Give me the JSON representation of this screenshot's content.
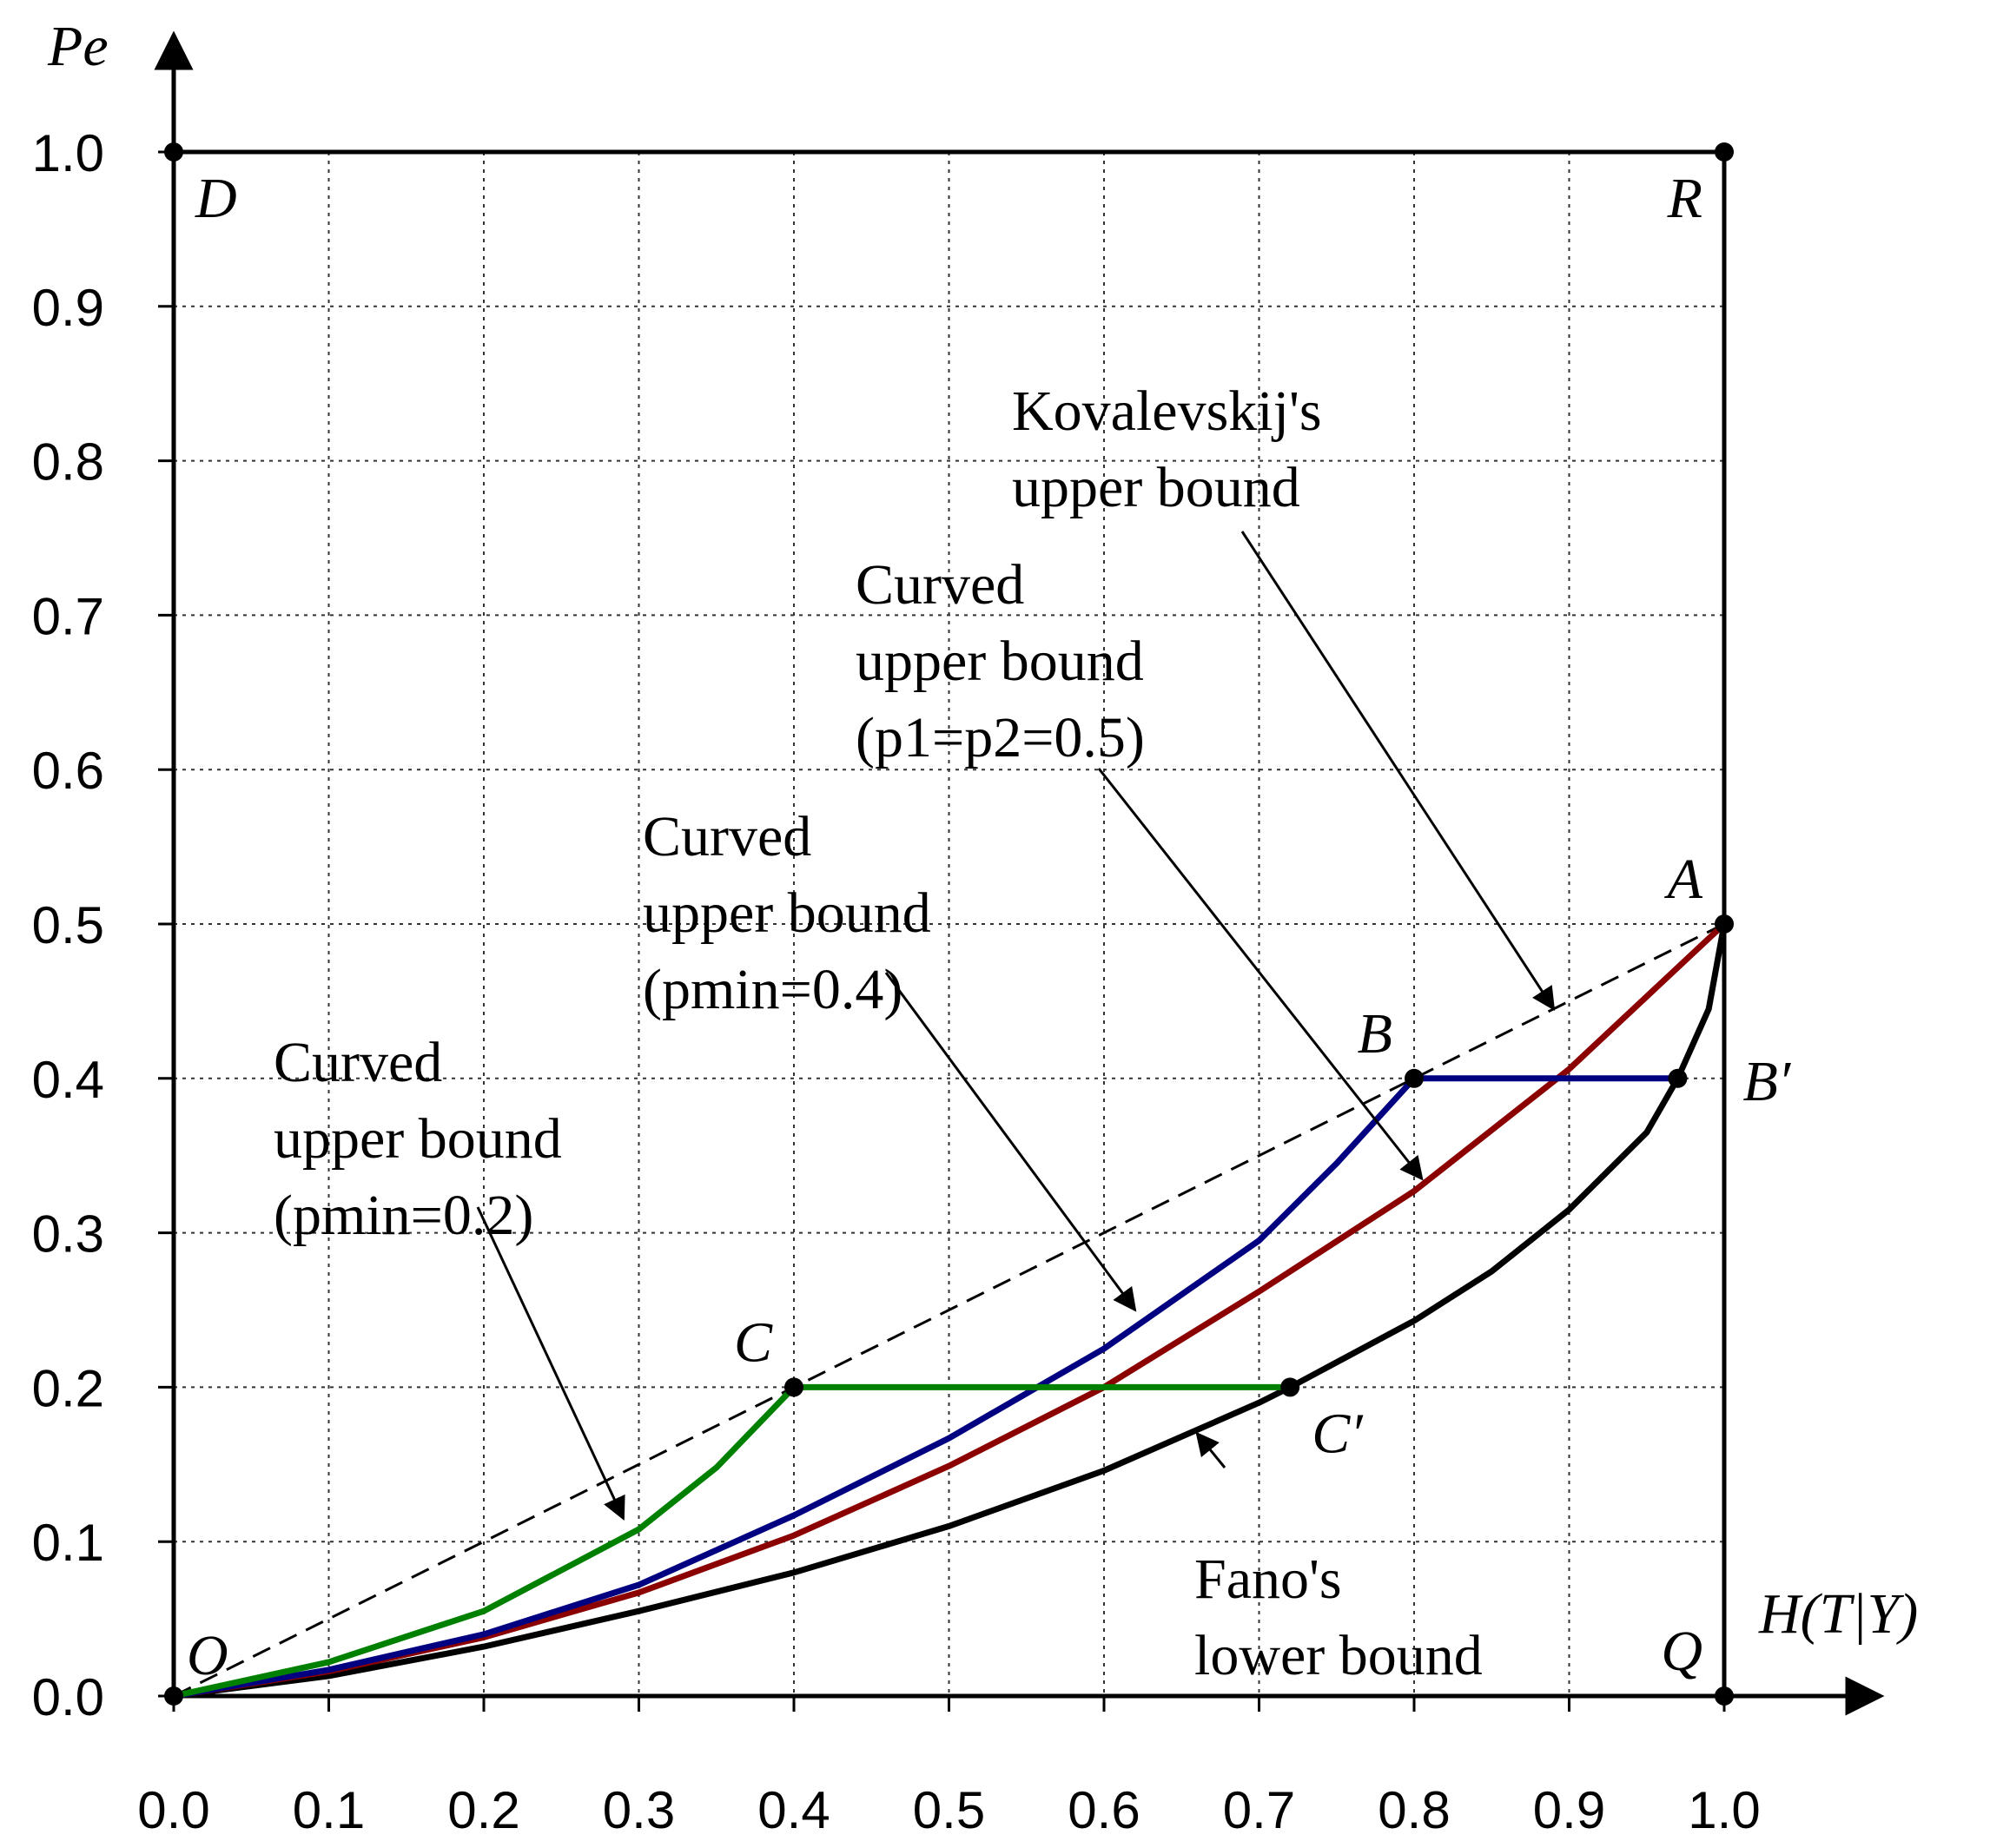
{
  "chart_data": {
    "type": "line",
    "title": "",
    "xlabel": "H(T|Y)",
    "ylabel": "Pe",
    "xlim": [
      0,
      1
    ],
    "ylim": [
      0,
      1
    ],
    "grid": true,
    "x_ticks": [
      "0.0",
      "0.1",
      "0.2",
      "0.3",
      "0.4",
      "0.5",
      "0.6",
      "0.7",
      "0.8",
      "0.9",
      "1.0"
    ],
    "y_ticks": [
      "0.0",
      "0.1",
      "0.2",
      "0.3",
      "0.4",
      "0.5",
      "0.6",
      "0.7",
      "0.8",
      "0.9",
      "1.0"
    ],
    "series": [
      {
        "name": "Kovalevskij's upper bound",
        "color": "#000000",
        "style": "dashed",
        "x": [
          0,
          1
        ],
        "y": [
          0,
          0.5
        ]
      },
      {
        "name": "Fano's lower bound",
        "color": "#000000",
        "style": "solid",
        "x": [
          0,
          0.1,
          0.2,
          0.3,
          0.4,
          0.5,
          0.6,
          0.7,
          0.72,
          0.8,
          0.85,
          0.9,
          0.95,
          0.97,
          0.99,
          1.0
        ],
        "y": [
          0,
          0.013,
          0.032,
          0.055,
          0.08,
          0.11,
          0.146,
          0.19,
          0.2,
          0.243,
          0.275,
          0.315,
          0.365,
          0.4,
          0.445,
          0.5
        ]
      },
      {
        "name": "Curved upper bound (p1=p2=0.5)",
        "color": "#8b0000",
        "style": "solid",
        "x": [
          0,
          0.1,
          0.2,
          0.3,
          0.4,
          0.5,
          0.6,
          0.7,
          0.8,
          0.9,
          1.0
        ],
        "y": [
          0,
          0.016,
          0.038,
          0.067,
          0.104,
          0.149,
          0.2,
          0.262,
          0.327,
          0.406,
          0.5
        ]
      },
      {
        "name": "Curved upper bound (pmin=0.4)",
        "color": "#000080",
        "style": "solid",
        "x": [
          0,
          0.1,
          0.2,
          0.3,
          0.4,
          0.5,
          0.6,
          0.7,
          0.75,
          0.8,
          0.97
        ],
        "y": [
          0,
          0.017,
          0.04,
          0.072,
          0.117,
          0.167,
          0.225,
          0.295,
          0.345,
          0.4,
          0.4
        ]
      },
      {
        "name": "Curved upper bound (pmin=0.2)",
        "color": "#008000",
        "style": "solid",
        "x": [
          0,
          0.1,
          0.2,
          0.3,
          0.35,
          0.4,
          0.72
        ],
        "y": [
          0,
          0.022,
          0.055,
          0.108,
          0.148,
          0.2,
          0.2
        ]
      },
      {
        "name": "frame",
        "color": "#000000",
        "style": "solid",
        "x": [
          0,
          0,
          1,
          1
        ],
        "y": [
          0,
          1,
          1,
          0
        ]
      }
    ],
    "points": [
      {
        "label": "O",
        "x": 0,
        "y": 0,
        "anchor": "upper-right"
      },
      {
        "label": "Q",
        "x": 1,
        "y": 0,
        "anchor": "upper-left"
      },
      {
        "label": "D",
        "x": 0,
        "y": 1,
        "anchor": "lower-right"
      },
      {
        "label": "R",
        "x": 1,
        "y": 1,
        "anchor": "lower-left"
      },
      {
        "label": "A",
        "x": 1,
        "y": 0.5,
        "anchor": "upper-left"
      },
      {
        "label": "B",
        "x": 0.8,
        "y": 0.4,
        "anchor": "upper-left"
      },
      {
        "label": "B′",
        "x": 0.97,
        "y": 0.4,
        "anchor": "right"
      },
      {
        "label": "C",
        "x": 0.4,
        "y": 0.2,
        "anchor": "upper-left"
      },
      {
        "label": "C′",
        "x": 0.72,
        "y": 0.2,
        "anchor": "lower-right"
      }
    ],
    "annotations": [
      {
        "text": [
          "Kovalevskij's",
          "upper bound"
        ],
        "position": "upper-right",
        "target_x": 0.89,
        "target_y": 0.445
      },
      {
        "text": [
          "Curved",
          "upper bound",
          "(p1=p2=0.5)"
        ],
        "position": "upper-center-right",
        "target_x": 0.805,
        "target_y": 0.335
      },
      {
        "text": [
          "Curved",
          "upper bound",
          "(pmin=0.4)"
        ],
        "position": "center",
        "target_x": 0.62,
        "target_y": 0.25
      },
      {
        "text": [
          "Curved",
          "upper bound",
          "(pmin=0.2)"
        ],
        "position": "center-left",
        "target_x": 0.29,
        "target_y": 0.115
      },
      {
        "text": [
          "Fano's",
          "lower bound"
        ],
        "position": "lower-right",
        "target_x": 0.66,
        "target_y": 0.17
      }
    ]
  }
}
